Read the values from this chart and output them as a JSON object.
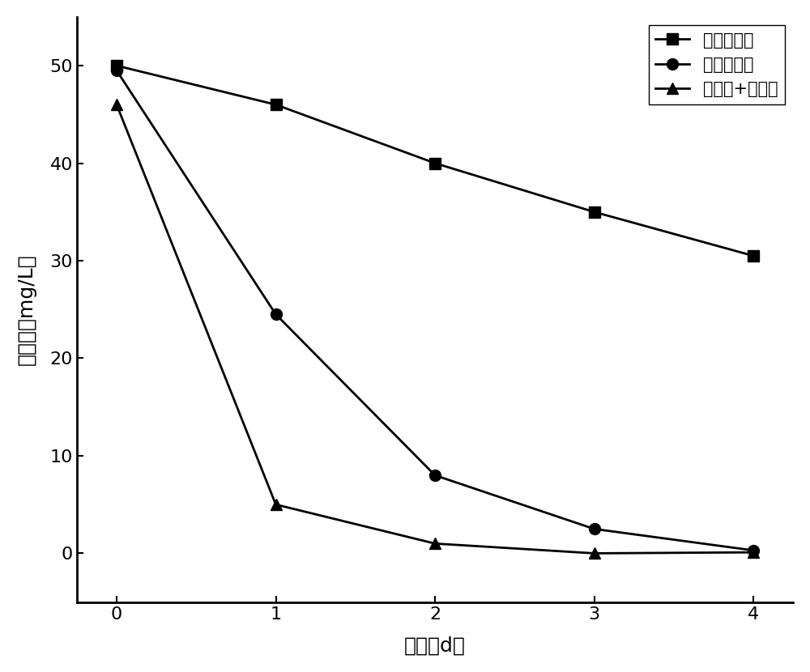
{
  "title": "",
  "xlabel": "时间（d）",
  "ylabel": "萌浓度（mg/L）",
  "x": [
    0,
    1,
    2,
    3,
    4
  ],
  "series": [
    {
      "label": "空白对照组",
      "y": [
        50,
        46,
        40,
        35,
        30.5
      ],
      "marker": "s",
      "color": "#000000",
      "linestyle": "-"
    },
    {
      "label": "单一降解菌",
      "y": [
        49.5,
        24.5,
        8,
        2.5,
        0.3
      ],
      "marker": "o",
      "color": "#000000",
      "linestyle": "-"
    },
    {
      "label": "降解菌+解脲菌",
      "y": [
        46,
        5,
        1,
        0,
        0.1
      ],
      "marker": "^",
      "color": "#000000",
      "linestyle": "-"
    }
  ],
  "xlim": [
    -0.25,
    4.25
  ],
  "ylim": [
    -5,
    55
  ],
  "yticks": [
    0,
    10,
    20,
    30,
    40,
    50
  ],
  "xticks": [
    0,
    1,
    2,
    3,
    4
  ],
  "legend_loc": "upper right",
  "background_color": "#ffffff",
  "marker_size": 10,
  "linewidth": 2,
  "grid": false
}
